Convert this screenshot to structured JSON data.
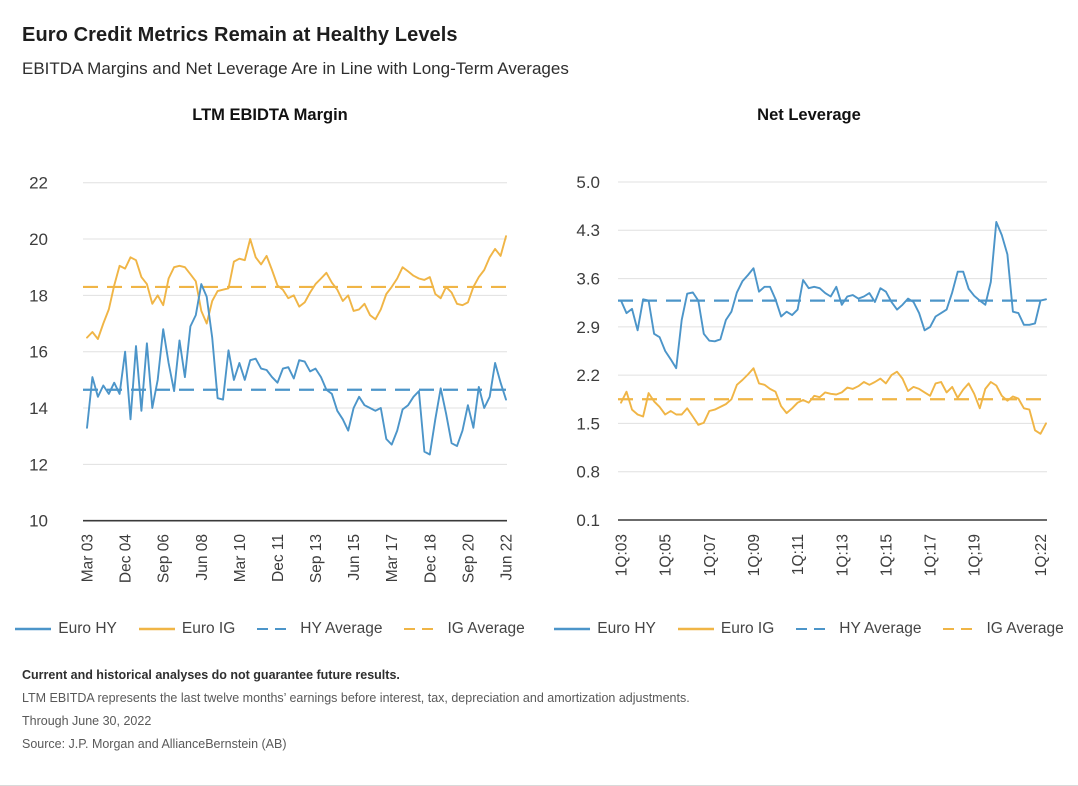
{
  "header": {
    "title": "Euro Credit Metrics Remain at Healthy Levels",
    "subtitle": "EBITDA Margins and Net Leverage Are in Line with Long-Term Averages"
  },
  "colors": {
    "euro_hy": "#4C95C9",
    "euro_ig": "#F0B546",
    "grid": "#E0E0E0",
    "axis": "#3A3A3A",
    "tick_text": "#3D3D3D",
    "legend_text": "#454545"
  },
  "chart_data": [
    {
      "type": "line",
      "title": "LTM EBIDTA Margin",
      "x_unit": "quarterly, Mar 2003 - Jun 2022",
      "ylim": [
        10,
        22
      ],
      "y_tick_labels": [
        "22",
        "20",
        "18",
        "16",
        "14",
        "12",
        "10"
      ],
      "y_tick_values": [
        22,
        20,
        18,
        16,
        14,
        12,
        10
      ],
      "x_tick_labels": [
        "Mar 03",
        "Dec 04",
        "Sep 06",
        "Jun 08",
        "Mar 10",
        "Dec 11",
        "Sep 13",
        "Jun 15",
        "Mar 17",
        "Dec 18",
        "Sep 20",
        "Jun 22"
      ],
      "x_tick_indices": [
        0,
        7,
        14,
        21,
        28,
        35,
        42,
        49,
        56,
        63,
        70,
        77
      ],
      "grid": true,
      "legend_position": "bottom",
      "series": [
        {
          "name": "Euro IG",
          "color_key": "euro_ig",
          "style": "solid",
          "values": [
            16.5,
            16.7,
            16.45,
            17.0,
            17.5,
            18.35,
            19.05,
            18.95,
            19.35,
            19.25,
            18.65,
            18.4,
            17.7,
            18.0,
            17.65,
            18.6,
            19.0,
            19.05,
            19.0,
            18.75,
            18.5,
            17.45,
            17.0,
            17.8,
            18.15,
            18.2,
            18.25,
            19.2,
            19.3,
            19.25,
            20.0,
            19.35,
            19.1,
            19.4,
            18.9,
            18.35,
            18.2,
            17.9,
            18.0,
            17.6,
            17.75,
            18.1,
            18.4,
            18.6,
            18.8,
            18.45,
            18.2,
            17.8,
            18.0,
            17.45,
            17.5,
            17.7,
            17.3,
            17.15,
            17.5,
            18.05,
            18.3,
            18.6,
            19.0,
            18.85,
            18.7,
            18.6,
            18.55,
            18.65,
            18.05,
            17.9,
            18.3,
            18.1,
            17.7,
            17.65,
            17.75,
            18.3,
            18.65,
            18.9,
            19.35,
            19.65,
            19.4,
            20.1
          ]
        },
        {
          "name": "Euro HY",
          "color_key": "euro_hy",
          "style": "solid",
          "values": [
            13.3,
            15.1,
            14.4,
            14.8,
            14.5,
            14.9,
            14.5,
            16.0,
            13.6,
            16.2,
            13.9,
            16.3,
            14.0,
            15.0,
            16.8,
            15.6,
            14.6,
            16.4,
            15.1,
            16.9,
            17.3,
            18.4,
            17.95,
            16.5,
            14.35,
            14.3,
            16.05,
            15.0,
            15.6,
            15.0,
            15.7,
            15.75,
            15.4,
            15.35,
            15.1,
            14.9,
            15.4,
            15.45,
            15.05,
            15.7,
            15.65,
            15.3,
            15.4,
            15.1,
            14.65,
            14.5,
            13.9,
            13.6,
            13.2,
            14.0,
            14.4,
            14.1,
            14.0,
            13.9,
            14.0,
            12.9,
            12.7,
            13.2,
            13.95,
            14.1,
            14.4,
            14.6,
            12.45,
            12.35,
            13.6,
            14.7,
            13.8,
            12.75,
            12.65,
            13.2,
            14.1,
            13.3,
            14.75,
            14.0,
            14.4,
            15.6,
            14.9,
            14.3
          ]
        },
        {
          "name": "HY Average",
          "color_key": "euro_hy",
          "style": "dashed",
          "value": 14.65
        },
        {
          "name": "IG Average",
          "color_key": "euro_ig",
          "style": "dashed",
          "value": 18.3
        }
      ],
      "legend": [
        {
          "label": "Euro HY",
          "color_key": "euro_hy",
          "style": "solid"
        },
        {
          "label": "Euro IG",
          "color_key": "euro_ig",
          "style": "solid"
        },
        {
          "label": "HY Average",
          "color_key": "euro_hy",
          "style": "dashed"
        },
        {
          "label": "IG Average",
          "color_key": "euro_ig",
          "style": "dashed"
        }
      ]
    },
    {
      "type": "line",
      "title": "Net Leverage",
      "x_unit": "quarterly, 1Q 2003 - 2Q 2022",
      "ylim": [
        0.1,
        5.0
      ],
      "y_tick_labels": [
        "5.0",
        "4.3",
        "3.6",
        "2.9",
        "2.2",
        "1.5",
        "0.8",
        "0.1"
      ],
      "y_tick_values": [
        5.0,
        4.3,
        3.6,
        2.9,
        2.2,
        1.5,
        0.8,
        0.1
      ],
      "x_tick_labels": [
        "1Q:03",
        "1Q:05",
        "1Q:07",
        "1Q:09",
        "1Q:11",
        "1Q:13",
        "1Q:15",
        "1Q:17",
        "1Q;19",
        "1Q:22"
      ],
      "x_tick_indices": [
        0,
        8,
        16,
        24,
        32,
        40,
        48,
        56,
        64,
        76
      ],
      "grid": true,
      "legend_position": "bottom",
      "series": [
        {
          "name": "Euro IG",
          "color_key": "euro_ig",
          "style": "solid",
          "values": [
            1.8,
            1.96,
            1.7,
            1.63,
            1.6,
            1.94,
            1.82,
            1.74,
            1.63,
            1.68,
            1.63,
            1.63,
            1.72,
            1.6,
            1.48,
            1.51,
            1.68,
            1.7,
            1.74,
            1.78,
            1.85,
            2.06,
            2.13,
            2.21,
            2.3,
            2.08,
            2.06,
            2.0,
            1.96,
            1.75,
            1.65,
            1.72,
            1.8,
            1.84,
            1.8,
            1.9,
            1.88,
            1.95,
            1.93,
            1.92,
            1.95,
            2.02,
            2.0,
            2.04,
            2.1,
            2.06,
            2.1,
            2.15,
            2.08,
            2.2,
            2.25,
            2.15,
            1.97,
            2.03,
            2.0,
            1.95,
            1.9,
            2.08,
            2.1,
            1.95,
            2.03,
            1.87,
            1.99,
            2.08,
            1.93,
            1.72,
            2.0,
            2.1,
            2.05,
            1.9,
            1.83,
            1.89,
            1.86,
            1.72,
            1.7,
            1.4,
            1.35,
            1.5
          ]
        },
        {
          "name": "Euro HY",
          "color_key": "euro_hy",
          "style": "solid",
          "values": [
            3.28,
            3.1,
            3.16,
            2.85,
            3.3,
            3.28,
            2.8,
            2.75,
            2.55,
            2.43,
            2.3,
            3.0,
            3.38,
            3.4,
            3.28,
            2.8,
            2.7,
            2.69,
            2.72,
            3.0,
            3.12,
            3.4,
            3.56,
            3.65,
            3.75,
            3.41,
            3.48,
            3.48,
            3.3,
            3.05,
            3.12,
            3.07,
            3.15,
            3.58,
            3.46,
            3.48,
            3.46,
            3.39,
            3.34,
            3.48,
            3.22,
            3.34,
            3.36,
            3.31,
            3.34,
            3.39,
            3.26,
            3.46,
            3.41,
            3.26,
            3.15,
            3.22,
            3.31,
            3.26,
            3.1,
            2.85,
            2.9,
            3.05,
            3.1,
            3.15,
            3.4,
            3.7,
            3.7,
            3.45,
            3.35,
            3.28,
            3.22,
            3.55,
            4.42,
            4.23,
            3.95,
            3.12,
            3.1,
            2.93,
            2.93,
            2.95,
            3.28,
            3.3
          ]
        },
        {
          "name": "HY Average",
          "color_key": "euro_hy",
          "style": "dashed",
          "value": 3.28
        },
        {
          "name": "IG Average",
          "color_key": "euro_ig",
          "style": "dashed",
          "value": 1.85
        }
      ],
      "legend": [
        {
          "label": "Euro HY",
          "color_key": "euro_hy",
          "style": "solid"
        },
        {
          "label": "Euro IG",
          "color_key": "euro_ig",
          "style": "solid"
        },
        {
          "label": "HY Average",
          "color_key": "euro_hy",
          "style": "dashed"
        },
        {
          "label": "IG Average",
          "color_key": "euro_ig",
          "style": "dashed"
        }
      ]
    }
  ],
  "footnotes": [
    "Current and historical analyses do not guarantee future results.",
    "LTM EBITDA represents the last twelve months’ earnings before interest, tax, depreciation and amortization adjustments.",
    "Through June 30, 2022",
    "Source: J.P. Morgan and AllianceBernstein (AB)"
  ]
}
